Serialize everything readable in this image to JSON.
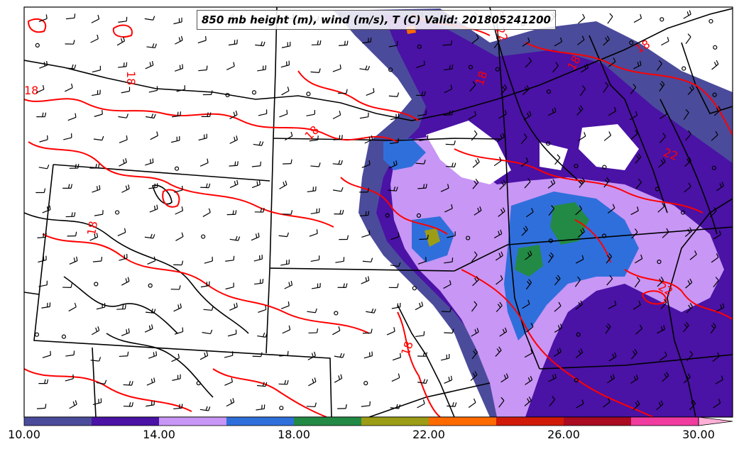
{
  "title": "850 mb height (m), wind (m/s), T (C) Valid: 201805241200",
  "contour_labels": [
    "18",
    "18",
    "18",
    "18",
    "18",
    "18",
    "22",
    "22",
    "22",
    "18",
    "18"
  ],
  "colorbar": {
    "tick_labels": [
      "10.00",
      "14.00",
      "18.00",
      "22.00",
      "26.00",
      "30.00"
    ],
    "colors": [
      "#4b4b9b",
      "#4a12a5",
      "#c896f5",
      "#2f6fdc",
      "#228a44",
      "#9c9c16",
      "#ff6a00",
      "#d21a08",
      "#aa0a22",
      "#f03ca0",
      "#ffb0d8"
    ]
  },
  "colors": {
    "temperature_contour": "#ff0000",
    "boundaries": "#000000"
  }
}
